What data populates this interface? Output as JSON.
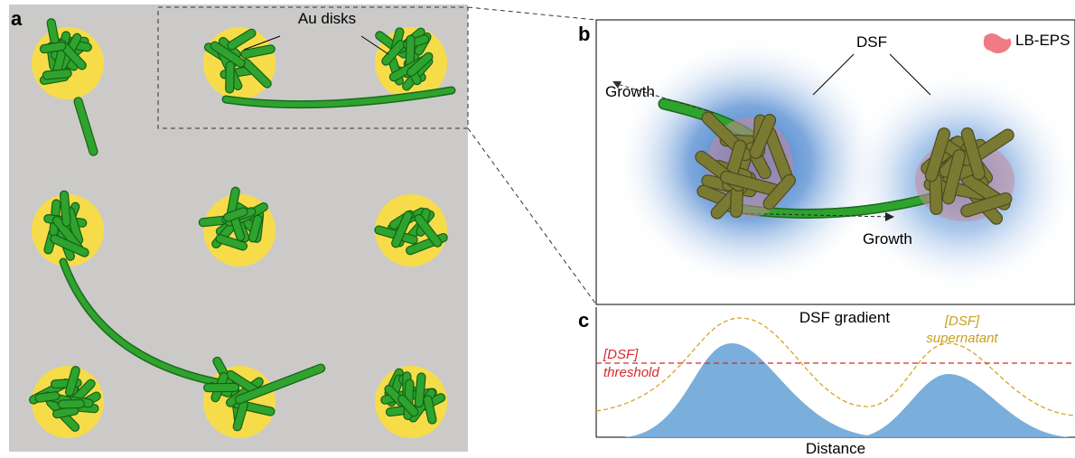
{
  "panels": {
    "a": {
      "label": "a",
      "annotation": "Au disks"
    },
    "b": {
      "label": "b",
      "dsf_label": "DSF",
      "legend": "LB-EPS",
      "growth_labels": [
        "Growth",
        "Growth"
      ]
    },
    "c": {
      "label": "c",
      "title": "DSF gradient",
      "threshold": [
        "[DSF]",
        "threshold"
      ],
      "supernatant": [
        "[DSF]",
        "supernatant"
      ],
      "x_label": "Distance"
    }
  }
}
